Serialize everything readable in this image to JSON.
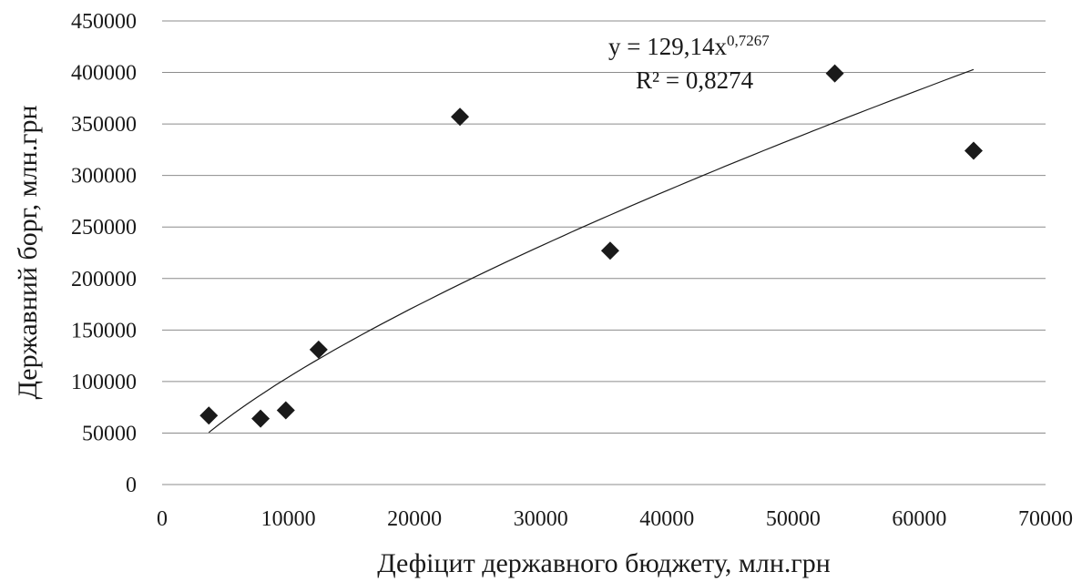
{
  "chart_data": {
    "type": "scatter",
    "xlabel": "Дефіцит державного бюджету, млн.грн",
    "ylabel": "Державний борг, млн.грн",
    "xlim": [
      0,
      70000
    ],
    "ylim": [
      0,
      450000
    ],
    "x_ticks": [
      0,
      10000,
      20000,
      30000,
      40000,
      50000,
      60000,
      70000
    ],
    "y_ticks": [
      0,
      50000,
      100000,
      150000,
      200000,
      250000,
      300000,
      350000,
      400000,
      450000
    ],
    "x_tick_labels": [
      "0",
      "10000",
      "20000",
      "30000",
      "40000",
      "50000",
      "60000",
      "70000"
    ],
    "y_tick_labels": [
      "0",
      "50000",
      "100000",
      "150000",
      "200000",
      "250000",
      "300000",
      "350000",
      "400000",
      "450000"
    ],
    "grid": "horizontal",
    "points": [
      {
        "x": 3700,
        "y": 67000
      },
      {
        "x": 7800,
        "y": 64000
      },
      {
        "x": 9800,
        "y": 72000
      },
      {
        "x": 12400,
        "y": 131000
      },
      {
        "x": 23600,
        "y": 357000
      },
      {
        "x": 35500,
        "y": 227000
      },
      {
        "x": 53300,
        "y": 399000
      },
      {
        "x": 64300,
        "y": 324000
      }
    ],
    "trendline": {
      "type": "power",
      "coefficient": 129.14,
      "exponent": 0.7267,
      "x_range": [
        3700,
        64300
      ],
      "equation_label": "y = 129,14x",
      "equation_exponent_label": "0,7267",
      "r2_label": "R² = 0,8274"
    }
  }
}
